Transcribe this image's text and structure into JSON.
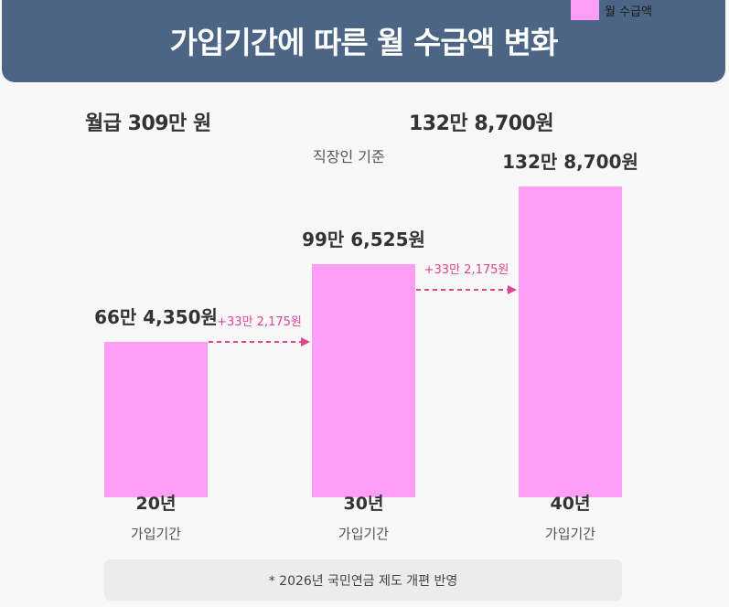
{
  "header": {
    "title": "가입기간에 따른 월 수급액 변화"
  },
  "legend": {
    "label": "월 수급액",
    "color": "#ff9ef5"
  },
  "salary_label": "월급 309만 원",
  "headline_value": "132만 8,700원",
  "basis_label": "직장인 기준",
  "footnote": "* 2026년 국민연금 제도 개편 반영",
  "chart_data": {
    "type": "bar",
    "title": "가입기간에 따른 월 수급액 변화",
    "series_name": "월 수급액",
    "categories": [
      "20년",
      "30년",
      "40년"
    ],
    "category_sublabel": "가입기간",
    "values": [
      664350,
      996525,
      1328700
    ],
    "value_labels": [
      "66만 4,350원",
      "99만 6,525원",
      "132만 8,700원"
    ],
    "differences": [
      "+33만 2,175원",
      "+33만 2,175원"
    ],
    "ylim": [
      0,
      1328700
    ],
    "color": "#ff9ef5"
  }
}
